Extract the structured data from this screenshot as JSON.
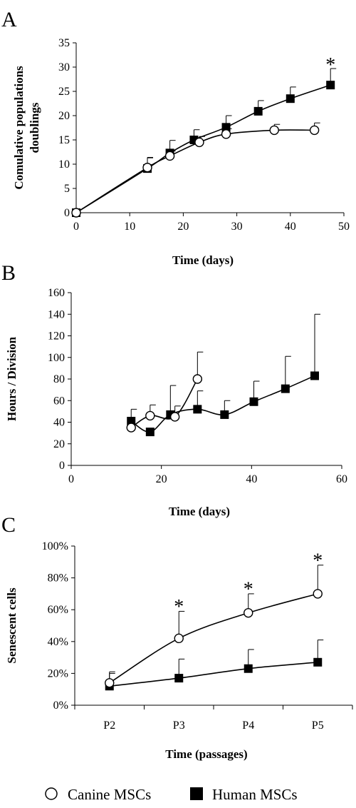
{
  "chart_data": [
    {
      "panel": "A",
      "type": "line",
      "xlabel": "Time (days)",
      "ylabel": "Comulative populations doublings",
      "xlim": [
        0,
        50
      ],
      "ylim": [
        0,
        35
      ],
      "x_ticks": [
        "0",
        "10",
        "20",
        "30",
        "40",
        "50"
      ],
      "y_ticks": [
        "0",
        "5",
        "10",
        "15",
        "20",
        "25",
        "30",
        "35"
      ],
      "series": [
        {
          "name": "Canine MSCs",
          "x": [
            0,
            13.3,
            17.5,
            23,
            28,
            37,
            44.5
          ],
          "y": [
            0,
            9.3,
            11.7,
            14.5,
            16.2,
            17,
            17
          ],
          "err": [
            0,
            2,
            1,
            1.2,
            1.1,
            1.2,
            1.5
          ]
        },
        {
          "name": "Human MSCs",
          "x": [
            0,
            13.3,
            17.5,
            22,
            28,
            34,
            40,
            47.5
          ],
          "y": [
            0,
            9.1,
            12.3,
            15,
            17.6,
            20.9,
            23.5,
            26.3
          ],
          "err": [
            0,
            2.3,
            2.6,
            2.1,
            2.4,
            2.2,
            2.4,
            3.4
          ]
        }
      ],
      "annotations": [
        {
          "text": "*",
          "x": 47.5,
          "y": 31.5
        }
      ]
    },
    {
      "panel": "B",
      "type": "line",
      "xlabel": "Time (days)",
      "ylabel": "Hours / Division",
      "xlim": [
        0,
        60
      ],
      "ylim": [
        0,
        160
      ],
      "x_ticks": [
        "0",
        "20",
        "40",
        "60"
      ],
      "y_ticks": [
        "0",
        "20",
        "40",
        "60",
        "80",
        "100",
        "120",
        "140",
        "160"
      ],
      "series": [
        {
          "name": "Canine MSCs",
          "x": [
            13.3,
            17.5,
            23,
            28
          ],
          "y": [
            35,
            46,
            45,
            80
          ],
          "err": [
            0,
            10,
            10,
            25
          ]
        },
        {
          "name": "Human MSCs",
          "x": [
            13.3,
            17.5,
            22,
            28,
            34,
            40.5,
            47.5,
            54
          ],
          "y": [
            41,
            31,
            47,
            52,
            47,
            59,
            71,
            83
          ],
          "err": [
            11,
            0,
            27,
            17,
            13,
            19,
            30,
            57
          ]
        }
      ]
    },
    {
      "panel": "C",
      "type": "line",
      "xlabel": "Time (passages)",
      "ylabel": "Senescent cells",
      "categories": [
        "P2",
        "P3",
        "P4",
        "P5"
      ],
      "ylim": [
        0,
        100
      ],
      "y_ticks": [
        "0%",
        "20%",
        "40%",
        "60%",
        "80%",
        "100%"
      ],
      "series": [
        {
          "name": "Canine MSCs",
          "values": [
            14,
            42,
            58,
            70
          ],
          "err": [
            7,
            17,
            12,
            18
          ]
        },
        {
          "name": "Human MSCs",
          "values": [
            12,
            17,
            23,
            27
          ],
          "err": [
            8,
            12,
            12,
            14
          ]
        }
      ],
      "annotations": [
        {
          "text": "*",
          "category": 1,
          "y": 65
        },
        {
          "text": "*",
          "category": 2,
          "y": 76
        },
        {
          "text": "*",
          "category": 3,
          "y": 94
        }
      ]
    }
  ],
  "legend": {
    "placement": "bottom",
    "items": [
      {
        "label": "Canine MSCs",
        "marker": "open-circle"
      },
      {
        "label": "Human MSCs",
        "marker": "filled-square"
      }
    ]
  }
}
